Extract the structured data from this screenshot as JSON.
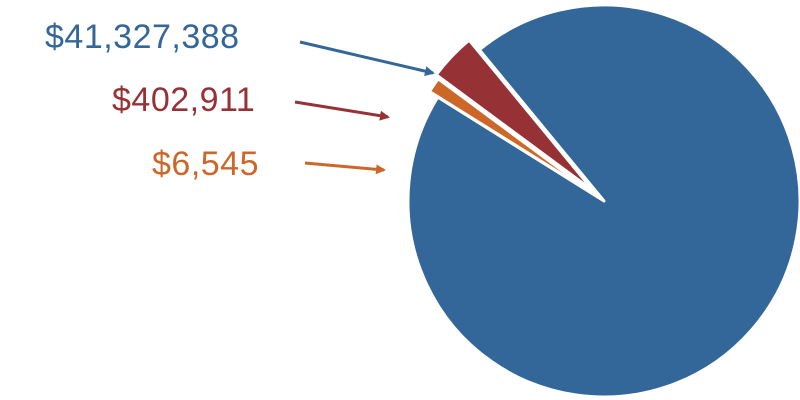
{
  "chart_data": {
    "type": "pie",
    "title": "",
    "slices": [
      {
        "label": "$41,327,388",
        "value": 41327388,
        "color": "#336799"
      },
      {
        "label": "$402,911",
        "value": 402911,
        "color": "#963135"
      },
      {
        "label": "$6,545",
        "value": 6545,
        "color": "#cd6729"
      }
    ],
    "exploded_slices": [
      "$402,911",
      "$6,545"
    ],
    "legend": "none"
  }
}
